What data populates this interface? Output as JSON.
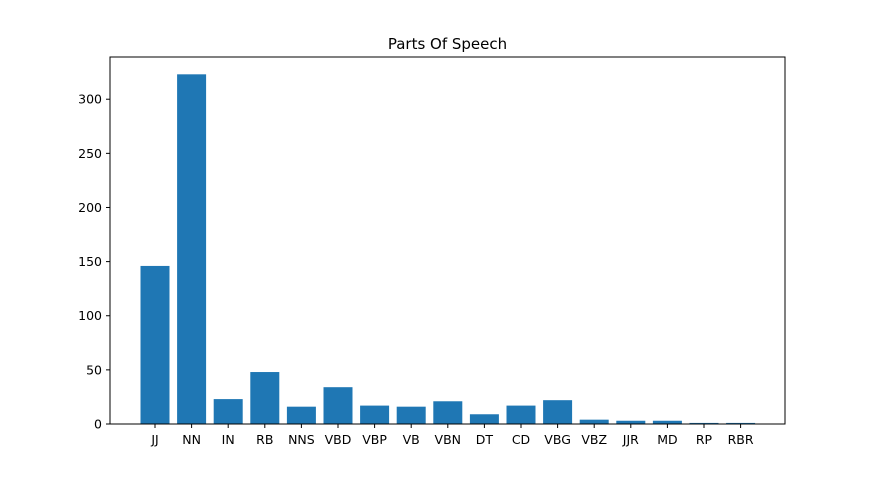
{
  "chart_data": {
    "type": "bar",
    "title": "Parts Of Speech",
    "xlabel": "",
    "ylabel": "",
    "categories": [
      "JJ",
      "NN",
      "IN",
      "RB",
      "NNS",
      "VBD",
      "VBP",
      "VB",
      "VBN",
      "DT",
      "CD",
      "VBG",
      "VBZ",
      "JJR",
      "MD",
      "RP",
      "RBR"
    ],
    "values": [
      146,
      323,
      23,
      48,
      16,
      34,
      17,
      16,
      21,
      9,
      17,
      22,
      4,
      3,
      3,
      1,
      1
    ],
    "ylim": [
      0,
      339
    ],
    "yticks": [
      0,
      50,
      100,
      150,
      200,
      250,
      300
    ],
    "grid": false,
    "legend": "none",
    "bar_color": "#1f77b4"
  }
}
